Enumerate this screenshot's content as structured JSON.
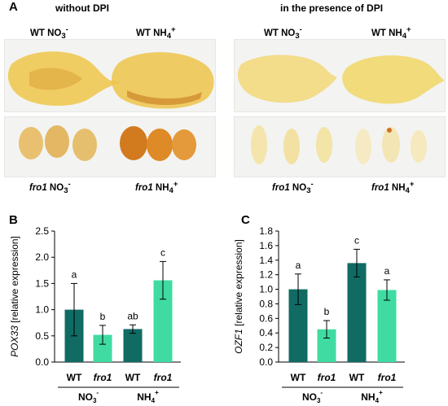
{
  "panel_a": {
    "label": "A",
    "header_left": "without DPI",
    "header_right": "in the presence of DPI",
    "top_labels": [
      {
        "base": "WT NO",
        "sub": "3",
        "sup": "-"
      },
      {
        "base": "WT NH",
        "sub": "4",
        "sup": "+"
      },
      {
        "base": "WT NO",
        "sub": "3",
        "sup": "-"
      },
      {
        "base": "WT NH",
        "sub": "4",
        "sup": "+"
      }
    ],
    "bottom_labels": [
      {
        "genotype": "fro1",
        "base": " NO",
        "sub": "3",
        "sup": "-"
      },
      {
        "genotype": "fro1",
        "base": " NH",
        "sub": "4",
        "sup": "+"
      },
      {
        "genotype": "fro1",
        "base": " NO",
        "sub": "3",
        "sup": "-"
      },
      {
        "genotype": "fro1",
        "base": " NH",
        "sub": "4",
        "sup": "+"
      }
    ]
  },
  "chart_data": [
    {
      "type": "bar",
      "panel_label": "B",
      "ylabel_gene": "POX33",
      "ylabel_rest": " [relative expression]",
      "ylim": [
        0,
        2.5
      ],
      "yticks": [
        "0.0",
        "0.5",
        "1.0",
        "1.5",
        "2.0",
        "2.5"
      ],
      "categories": [
        "WT",
        "fro1",
        "WT",
        "fro1"
      ],
      "values": [
        1.0,
        0.52,
        0.63,
        1.56
      ],
      "errors": [
        0.5,
        0.18,
        0.08,
        0.36
      ],
      "letters": [
        "a",
        "b",
        "ab",
        "c"
      ],
      "colors": [
        "#106b63",
        "#3fdba2",
        "#106b63",
        "#3fdba2"
      ],
      "groups": [
        {
          "base": "NO",
          "sub": "3",
          "sup": "-"
        },
        {
          "base": "NH",
          "sub": "4",
          "sup": "+"
        }
      ]
    },
    {
      "type": "bar",
      "panel_label": "C",
      "ylabel_gene": "OZF1",
      "ylabel_rest": " [relative expression]",
      "ylim": [
        0,
        1.8
      ],
      "yticks": [
        "0.0",
        "0.2",
        "0.4",
        "0.6",
        "0.8",
        "1.0",
        "1.2",
        "1.4",
        "1.6",
        "1.8"
      ],
      "categories": [
        "WT",
        "fro1",
        "WT",
        "fro1"
      ],
      "values": [
        1.0,
        0.45,
        1.36,
        0.99
      ],
      "errors": [
        0.21,
        0.12,
        0.19,
        0.14
      ],
      "letters": [
        "a",
        "b",
        "c",
        "a"
      ],
      "colors": [
        "#106b63",
        "#3fdba2",
        "#106b63",
        "#3fdba2"
      ],
      "groups": [
        {
          "base": "NO",
          "sub": "3",
          "sup": "-"
        },
        {
          "base": "NH",
          "sub": "4",
          "sup": "+"
        }
      ]
    }
  ]
}
